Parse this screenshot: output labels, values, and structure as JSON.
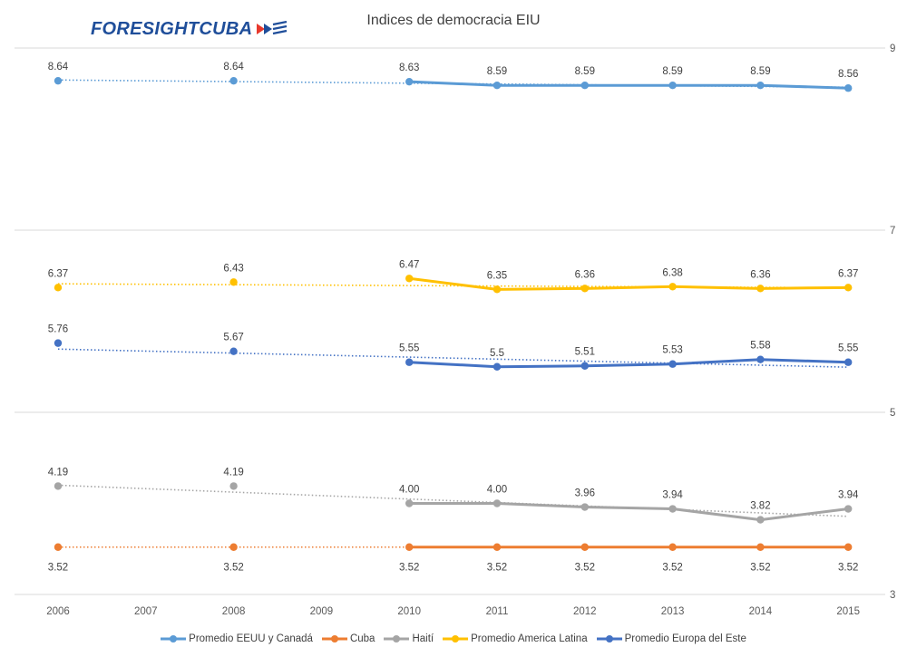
{
  "logo": {
    "text": "FORESIGHTCUBA",
    "icon": "flag-stripes-icon",
    "colors": {
      "text": "#1f4e9a",
      "accent": "#e8382c"
    }
  },
  "chart_data": {
    "type": "line",
    "title": "Indices de democracia EIU",
    "xlabel": "",
    "ylabel": "",
    "categories": [
      "2006",
      "2007",
      "2008",
      "2009",
      "2010",
      "2011",
      "2012",
      "2013",
      "2014",
      "2015"
    ],
    "y_ticks": [
      "3",
      "5",
      "7",
      "9"
    ],
    "ylim": [
      3,
      9
    ],
    "y_axis_side": "right",
    "grid": "horizontal",
    "legend_position": "bottom",
    "series": [
      {
        "name": "Promedio EEUU y Canadá",
        "color": "#5b9bd5",
        "x": [
          "2006",
          "2008",
          "2010",
          "2011",
          "2012",
          "2013",
          "2014",
          "2015"
        ],
        "values": [
          8.64,
          8.64,
          8.63,
          8.59,
          8.59,
          8.59,
          8.59,
          8.56
        ],
        "labels": [
          "8.64",
          "8.64",
          "8.63",
          "8.59",
          "8.59",
          "8.59",
          "8.59",
          "8.56"
        ],
        "label_position": "above",
        "trendline": true
      },
      {
        "name": "Cuba",
        "color": "#ed7d31",
        "x": [
          "2006",
          "2008",
          "2010",
          "2011",
          "2012",
          "2013",
          "2014",
          "2015"
        ],
        "values": [
          3.52,
          3.52,
          3.52,
          3.52,
          3.52,
          3.52,
          3.52,
          3.52
        ],
        "labels": [
          "3.52",
          "3.52",
          "3.52",
          "3.52",
          "3.52",
          "3.52",
          "3.52",
          "3.52"
        ],
        "label_position": "below",
        "trendline": true
      },
      {
        "name": "Haití",
        "color": "#a5a5a5",
        "x": [
          "2006",
          "2008",
          "2010",
          "2011",
          "2012",
          "2013",
          "2014",
          "2015"
        ],
        "values": [
          4.19,
          4.19,
          4.0,
          4.0,
          3.96,
          3.94,
          3.82,
          3.94
        ],
        "labels": [
          "4.19",
          "4.19",
          "4.00",
          "4.00",
          "3.96",
          "3.94",
          "3.82",
          "3.94"
        ],
        "label_position": "above",
        "trendline": true
      },
      {
        "name": "Promedio America Latina",
        "color": "#ffc000",
        "x": [
          "2006",
          "2008",
          "2010",
          "2011",
          "2012",
          "2013",
          "2014",
          "2015"
        ],
        "values": [
          6.37,
          6.43,
          6.47,
          6.35,
          6.36,
          6.38,
          6.36,
          6.37
        ],
        "labels": [
          "6.37",
          "6.43",
          "6.47",
          "6.35",
          "6.36",
          "6.38",
          "6.36",
          "6.37"
        ],
        "label_position": "above",
        "trendline": true
      },
      {
        "name": "Promedio Europa del Este",
        "color": "#4472c4",
        "x": [
          "2006",
          "2008",
          "2010",
          "2011",
          "2012",
          "2013",
          "2014",
          "2015"
        ],
        "values": [
          5.76,
          5.67,
          5.55,
          5.5,
          5.51,
          5.53,
          5.58,
          5.55
        ],
        "labels": [
          "5.76",
          "5.67",
          "5.55",
          "5.5",
          "5.51",
          "5.53",
          "5.58",
          "5.55"
        ],
        "label_position": "above",
        "trendline": true
      }
    ]
  }
}
